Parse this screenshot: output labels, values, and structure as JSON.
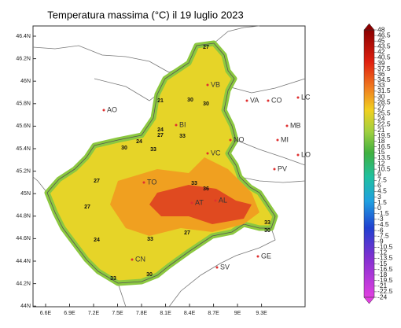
{
  "title": "Temperatura massima (°C) il 19 luglio 2023",
  "lat_ticks": [
    {
      "value": 46.4,
      "label": "46.4N"
    },
    {
      "value": 46.2,
      "label": "46.2N"
    },
    {
      "value": 46,
      "label": "46N"
    },
    {
      "value": 45.8,
      "label": "45.8N"
    },
    {
      "value": 45.6,
      "label": "45.6N"
    },
    {
      "value": 45.4,
      "label": "45.4N"
    },
    {
      "value": 45.2,
      "label": "45.2N"
    },
    {
      "value": 45,
      "label": "45N"
    },
    {
      "value": 44.8,
      "label": "44.8N"
    },
    {
      "value": 44.6,
      "label": "44.6N"
    },
    {
      "value": 44.4,
      "label": "44.4N"
    },
    {
      "value": 44.2,
      "label": "44.2N"
    },
    {
      "value": 44,
      "label": "44N"
    }
  ],
  "lon_ticks": [
    {
      "value": 6.6,
      "label": "6.6E"
    },
    {
      "value": 6.9,
      "label": "6.9E"
    },
    {
      "value": 7.2,
      "label": "7.2E"
    },
    {
      "value": 7.5,
      "label": "7.5E"
    },
    {
      "value": 7.8,
      "label": "7.8E"
    },
    {
      "value": 8.1,
      "label": "8.1E"
    },
    {
      "value": 8.4,
      "label": "8.4E"
    },
    {
      "value": 8.7,
      "label": "8.7E"
    },
    {
      "value": 9,
      "label": "9E"
    },
    {
      "value": 9.3,
      "label": "9.3E"
    }
  ],
  "cities": [
    "AO",
    "VB",
    "VA",
    "CO",
    "LC",
    "BI",
    "MB",
    "MI",
    "NO",
    "VC",
    "LO",
    "PV",
    "TO",
    "AT",
    "AL",
    "CN",
    "GE",
    "SV"
  ],
  "contour_labels": [
    27,
    30,
    30,
    21,
    24,
    27,
    33,
    24,
    33,
    30,
    27,
    33,
    36,
    27,
    24,
    33,
    27,
    33,
    30,
    33,
    30
  ],
  "colorbar_ticks": [
    48,
    46.5,
    45,
    43.5,
    42,
    40.5,
    39,
    37.5,
    36,
    34.5,
    33,
    31.5,
    30,
    28.5,
    27,
    25.5,
    24,
    22.5,
    21,
    19.5,
    18,
    16.5,
    15,
    13.5,
    12,
    10.5,
    9,
    7.5,
    6,
    4.5,
    3,
    1.5,
    0,
    -1.5,
    -3,
    -4.5,
    -6,
    -7.5,
    -9,
    -10.5,
    -12,
    -13.5,
    -15,
    -16.5,
    -18,
    -19.5,
    -21,
    -22.5,
    -24
  ]
}
